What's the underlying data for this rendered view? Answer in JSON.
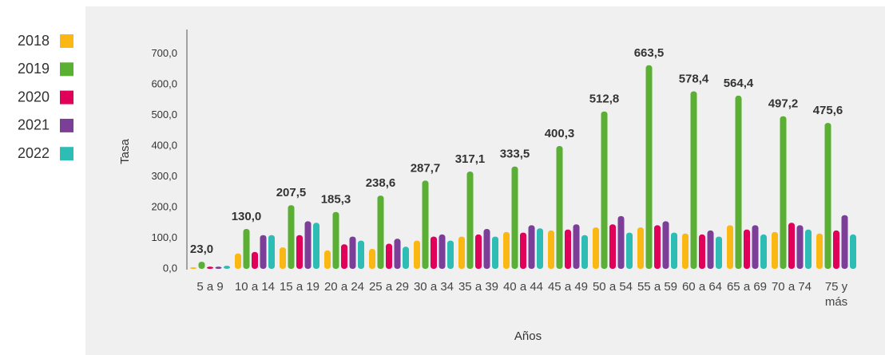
{
  "chart_data": {
    "type": "bar",
    "ylabel": "Tasa",
    "xlabel": "Años",
    "categories": [
      "5 a 9",
      "10 a 14",
      "15 a 19",
      "20 a 24",
      "25 a 29",
      "30 a 34",
      "35 a 39",
      "40 a 44",
      "45 a 49",
      "50 a 54",
      "55 a 59",
      "60 a 64",
      "65 a 69",
      "70 a 74",
      "75 y más"
    ],
    "series": [
      {
        "name": "2018",
        "color": "#fbb714",
        "values": [
          5,
          50,
          70,
          60,
          65,
          92,
          105,
          120,
          125,
          135,
          135,
          115,
          142,
          120,
          115
        ]
      },
      {
        "name": "2019",
        "color": "#5ab033",
        "values": [
          23.0,
          130.0,
          207.5,
          185.3,
          238.6,
          287.7,
          317.1,
          333.5,
          400.3,
          512.8,
          663.5,
          578.4,
          564.4,
          497.2,
          475.6
        ],
        "value_labels": [
          "23,0",
          "130,0",
          "207,5",
          "185,3",
          "238,6",
          "287,7",
          "317,1",
          "333,5",
          "400,3",
          "512,8",
          "663,5",
          "578,4",
          "564,4",
          "497,2",
          "475,6"
        ]
      },
      {
        "name": "2020",
        "color": "#e0005a",
        "values": [
          7,
          55,
          110,
          80,
          82,
          105,
          112,
          118,
          128,
          145,
          142,
          112,
          128,
          150,
          125
        ]
      },
      {
        "name": "2021",
        "color": "#7b3f98",
        "values": [
          7,
          110,
          155,
          105,
          98,
          112,
          130,
          142,
          145,
          172,
          155,
          125,
          142,
          142,
          175
        ]
      },
      {
        "name": "2022",
        "color": "#2ebdb5",
        "values": [
          10,
          110,
          150,
          92,
          72,
          92,
          105,
          132,
          110,
          118,
          118,
          105,
          112,
          128,
          112
        ]
      }
    ],
    "ylim": [
      0,
      780
    ],
    "yticks": [
      {
        "value": 0,
        "label": "0,0"
      },
      {
        "value": 100,
        "label": "100,0"
      },
      {
        "value": 200,
        "label": "200,0"
      },
      {
        "value": 300,
        "label": "300,0"
      },
      {
        "value": 400,
        "label": "400,0"
      },
      {
        "value": 500,
        "label": "500,0"
      },
      {
        "value": 600,
        "label": "600,0"
      },
      {
        "value": 700,
        "label": "700,0"
      }
    ],
    "legend": "left"
  }
}
